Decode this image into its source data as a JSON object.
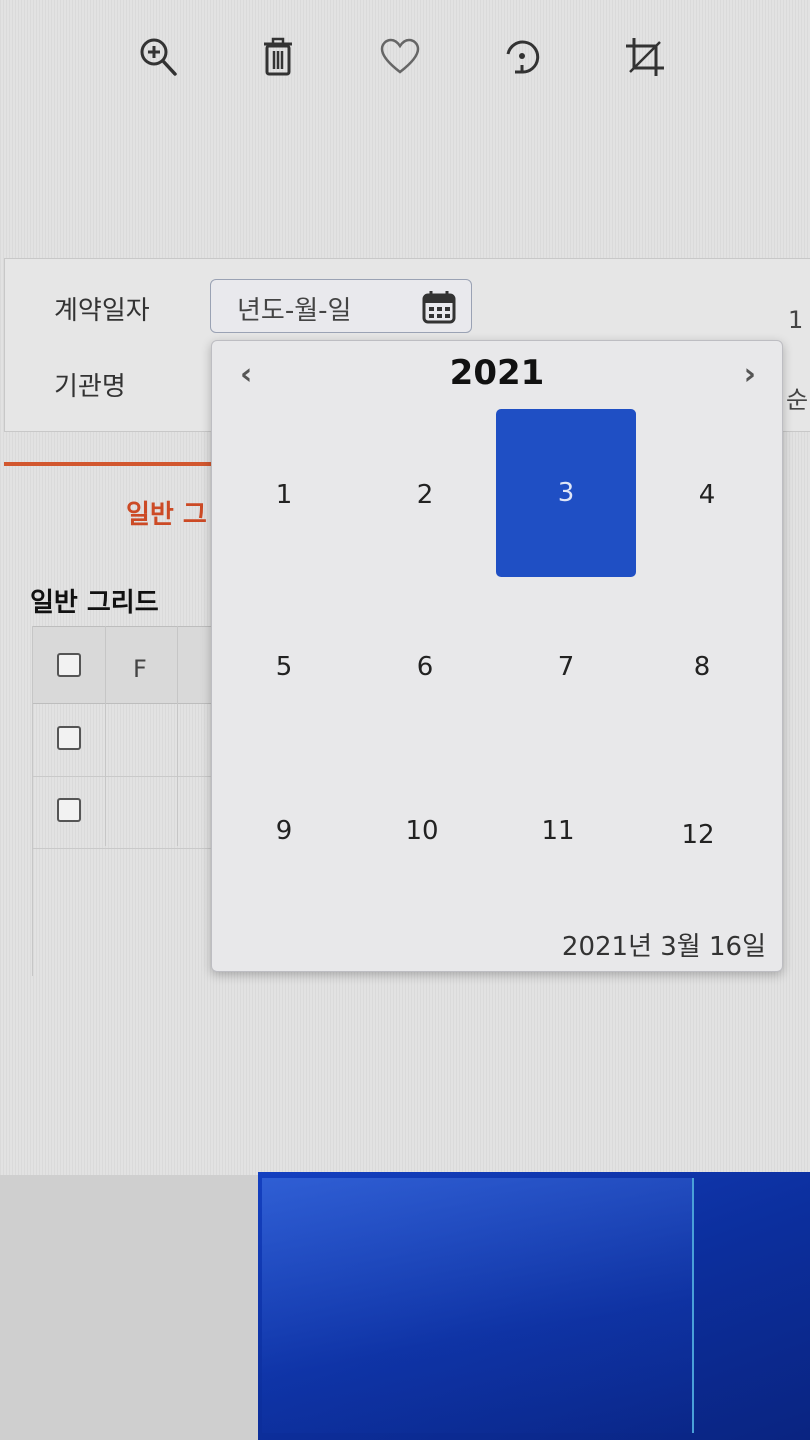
{
  "toolbar": {
    "icons": [
      "zoom-in-icon",
      "trash-icon",
      "heart-icon",
      "rotate-icon",
      "crop-icon"
    ]
  },
  "form": {
    "contract_date_label": "계약일자",
    "date_placeholder": "년도-월-일",
    "agency_label": "기관명",
    "right_edge_1": "1",
    "right_edge_2": "순"
  },
  "tabs": {
    "general_grid_tab": "일반 그"
  },
  "grid": {
    "title": "일반 그리드",
    "header_col_f": "F"
  },
  "calendar": {
    "prev": "‹",
    "next": "›",
    "year": "2021",
    "months": [
      "1",
      "2",
      "3",
      "4",
      "5",
      "6",
      "7",
      "8",
      "9",
      "10",
      "11",
      "12"
    ],
    "selected_month": "3",
    "today_text": "2021년 3월 16일"
  },
  "colors": {
    "accent_orange": "#d2572e",
    "selected_blue": "#1f4fc4"
  }
}
